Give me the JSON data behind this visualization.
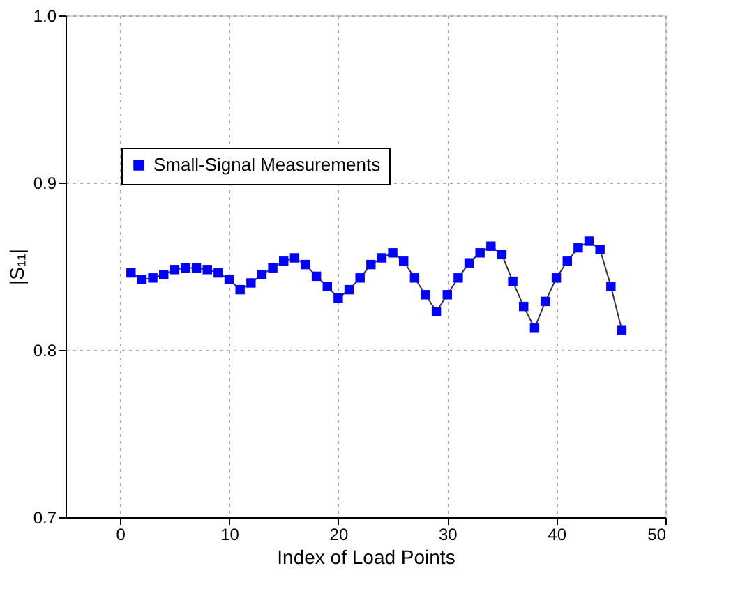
{
  "chart_data": {
    "type": "line",
    "xlabel": "Index of Load Points",
    "ylabel": "|S₁₁|",
    "x": [
      1,
      2,
      3,
      4,
      5,
      6,
      7,
      8,
      9,
      10,
      11,
      12,
      13,
      14,
      15,
      16,
      17,
      18,
      19,
      20,
      21,
      22,
      23,
      24,
      25,
      26,
      27,
      28,
      29,
      30,
      31,
      32,
      33,
      34,
      35,
      36,
      37,
      38,
      39,
      40,
      41,
      42,
      43,
      44,
      45,
      46
    ],
    "series": [
      {
        "name": "Small-Signal Measurements",
        "color": "#0000ff",
        "values": [
          0.846,
          0.842,
          0.843,
          0.845,
          0.848,
          0.849,
          0.849,
          0.848,
          0.846,
          0.842,
          0.836,
          0.84,
          0.845,
          0.849,
          0.853,
          0.855,
          0.851,
          0.844,
          0.838,
          0.831,
          0.836,
          0.843,
          0.851,
          0.855,
          0.858,
          0.853,
          0.843,
          0.833,
          0.823,
          0.833,
          0.843,
          0.852,
          0.858,
          0.862,
          0.857,
          0.841,
          0.826,
          0.813,
          0.829,
          0.843,
          0.853,
          0.861,
          0.865,
          0.86,
          0.838,
          0.812
        ]
      }
    ],
    "xlim": [
      -5,
      50
    ],
    "xticks": [
      0,
      10,
      20,
      30,
      40,
      50
    ],
    "ylim": [
      0.7,
      1.0
    ],
    "yticks": [
      0.7,
      0.8,
      0.9,
      {
        "value": 1.0,
        "label": "1.0"
      }
    ],
    "grid": true,
    "legend": "top left",
    "marker": "square",
    "line_style": "solid"
  }
}
